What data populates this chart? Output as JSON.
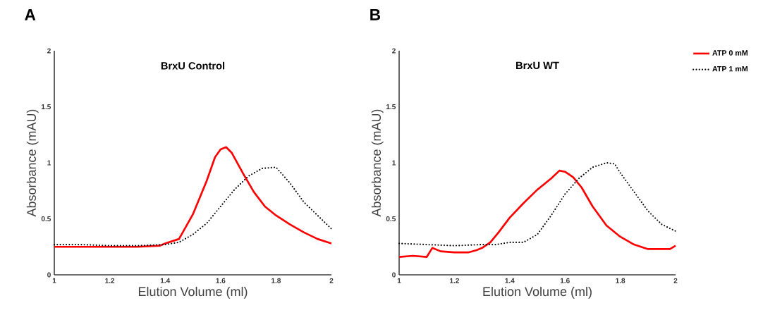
{
  "chart_data": [
    {
      "type": "line",
      "title": "BrxU Control",
      "xlabel": "Elution Volume (ml)",
      "ylabel": "Absorbance (mAU)",
      "annotations": [
        "A"
      ],
      "xlim": [
        1,
        2
      ],
      "ylim": [
        0,
        2
      ],
      "xticks": [
        1,
        1.2,
        1.4,
        1.6,
        1.8,
        2
      ],
      "yticks": [
        0,
        0.5,
        1,
        1.5,
        2
      ],
      "grid": false,
      "legend": false,
      "marker": "none",
      "series": [
        {
          "color": "#ff0000",
          "line_style": "solid",
          "x": [
            1,
            1.1,
            1.2,
            1.3,
            1.38,
            1.4,
            1.45,
            1.5,
            1.55,
            1.58,
            1.6,
            1.62,
            1.64,
            1.68,
            1.72,
            1.76,
            1.8,
            1.85,
            1.9,
            1.95,
            2
          ],
          "values": [
            0.25,
            0.25,
            0.25,
            0.25,
            0.26,
            0.28,
            0.32,
            0.54,
            0.84,
            1.05,
            1.12,
            1.14,
            1.09,
            0.91,
            0.74,
            0.61,
            0.53,
            0.45,
            0.38,
            0.32,
            0.28
          ]
        },
        {
          "color": "#000000",
          "line_style": "dotted",
          "x": [
            1,
            1.1,
            1.2,
            1.3,
            1.4,
            1.45,
            1.5,
            1.55,
            1.6,
            1.65,
            1.7,
            1.75,
            1.8,
            1.85,
            1.9,
            1.95,
            2
          ],
          "values": [
            0.27,
            0.27,
            0.26,
            0.26,
            0.27,
            0.29,
            0.36,
            0.46,
            0.61,
            0.76,
            0.88,
            0.95,
            0.96,
            0.82,
            0.65,
            0.53,
            0.41
          ]
        }
      ]
    },
    {
      "type": "line",
      "title": "BrxU WT",
      "xlabel": "Elution Volume (ml)",
      "ylabel": "Absorbance (mAU)",
      "annotations": [
        "B"
      ],
      "xlim": [
        1,
        2
      ],
      "ylim": [
        0,
        2
      ],
      "xticks": [
        1,
        1.2,
        1.4,
        1.6,
        1.8,
        2
      ],
      "yticks": [
        0,
        0.5,
        1,
        1.5,
        2
      ],
      "grid": false,
      "legend": "top right",
      "marker": "none",
      "series": [
        {
          "name": "ATP 0 mM",
          "color": "#ff0000",
          "line_style": "solid",
          "x": [
            1,
            1.05,
            1.1,
            1.12,
            1.15,
            1.2,
            1.25,
            1.28,
            1.3,
            1.33,
            1.36,
            1.4,
            1.45,
            1.5,
            1.55,
            1.58,
            1.6,
            1.63,
            1.66,
            1.7,
            1.75,
            1.8,
            1.85,
            1.9,
            1.95,
            1.98,
            2
          ],
          "values": [
            0.16,
            0.17,
            0.16,
            0.24,
            0.21,
            0.2,
            0.2,
            0.22,
            0.24,
            0.29,
            0.38,
            0.51,
            0.64,
            0.76,
            0.86,
            0.93,
            0.92,
            0.87,
            0.78,
            0.61,
            0.44,
            0.34,
            0.27,
            0.23,
            0.23,
            0.23,
            0.26
          ]
        },
        {
          "name": "ATP 1 mM",
          "color": "#000000",
          "line_style": "dotted",
          "x": [
            1,
            1.1,
            1.2,
            1.3,
            1.35,
            1.4,
            1.45,
            1.5,
            1.55,
            1.6,
            1.65,
            1.7,
            1.75,
            1.78,
            1.8,
            1.85,
            1.9,
            1.95,
            2
          ],
          "values": [
            0.28,
            0.27,
            0.26,
            0.27,
            0.27,
            0.29,
            0.29,
            0.36,
            0.53,
            0.72,
            0.86,
            0.96,
            1.0,
            0.99,
            0.91,
            0.74,
            0.57,
            0.45,
            0.39
          ]
        }
      ]
    }
  ]
}
